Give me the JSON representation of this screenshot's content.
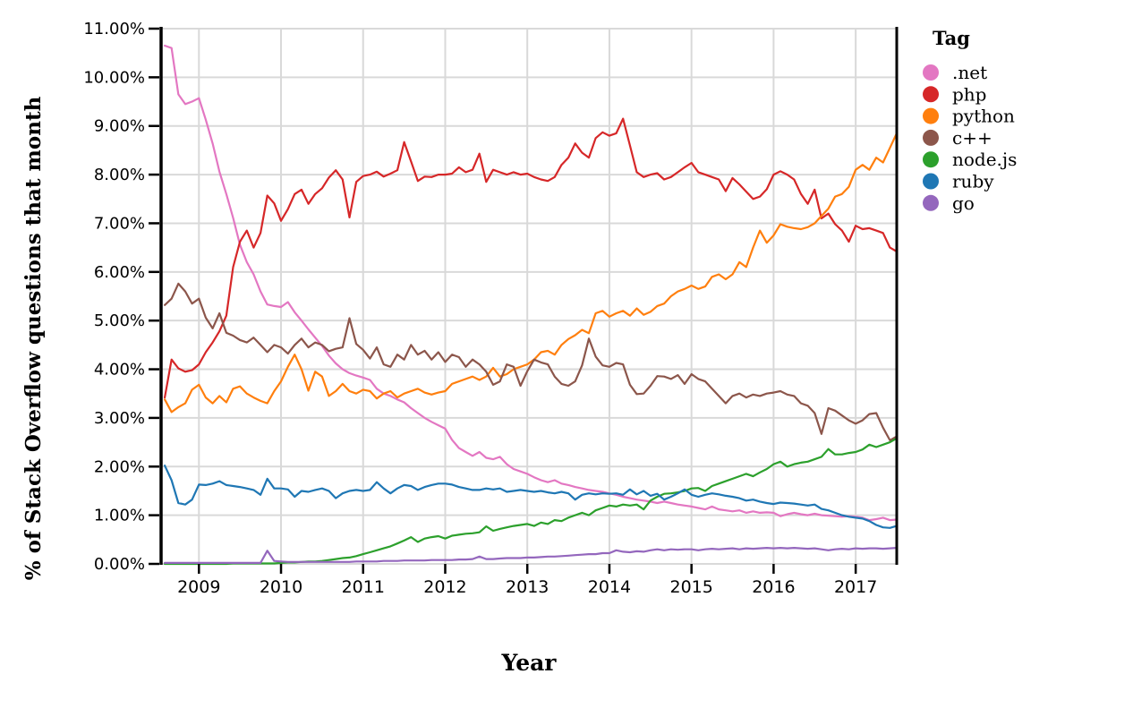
{
  "chart_data": {
    "type": "line",
    "title": "",
    "xlabel": "Year",
    "ylabel": "% of Stack Overflow questions that month",
    "legend_title": "Tag",
    "legend_position": "right",
    "grid": true,
    "xlim": [
      2008.55,
      2017.5
    ],
    "ylim": [
      0,
      11
    ],
    "x_start": 2008.5833,
    "x_step": 0.0833333,
    "x_ticks": [
      2009,
      2010,
      2011,
      2012,
      2013,
      2014,
      2015,
      2016,
      2017
    ],
    "x_tick_labels": [
      "2009",
      "2010",
      "2011",
      "2012",
      "2013",
      "2014",
      "2015",
      "2016",
      "2017"
    ],
    "y_ticks": [
      0,
      1,
      2,
      3,
      4,
      5,
      6,
      7,
      8,
      9,
      10,
      11
    ],
    "y_tick_labels": [
      "0.00%",
      "1.00%",
      "2.00%",
      "3.00%",
      "4.00%",
      "5.00%",
      "6.00%",
      "7.00%",
      "8.00%",
      "9.00%",
      "10.00%",
      "11.00%"
    ],
    "grid_color": "#d9d9d9",
    "axis_color": "#000000",
    "series": [
      {
        "name": ".net",
        "color": "#e377c2",
        "values": [
          10.65,
          10.6,
          9.65,
          9.45,
          9.5,
          9.57,
          9.13,
          8.64,
          8.06,
          7.6,
          7.11,
          6.56,
          6.2,
          5.95,
          5.6,
          5.33,
          5.3,
          5.28,
          5.38,
          5.17,
          5.0,
          4.82,
          4.65,
          4.48,
          4.28,
          4.12,
          4.0,
          3.92,
          3.87,
          3.83,
          3.78,
          3.6,
          3.5,
          3.45,
          3.38,
          3.32,
          3.2,
          3.1,
          3.0,
          2.92,
          2.85,
          2.78,
          2.55,
          2.38,
          2.3,
          2.22,
          2.3,
          2.18,
          2.15,
          2.2,
          2.05,
          1.95,
          1.9,
          1.85,
          1.78,
          1.72,
          1.68,
          1.72,
          1.65,
          1.62,
          1.58,
          1.55,
          1.52,
          1.5,
          1.48,
          1.45,
          1.42,
          1.38,
          1.35,
          1.32,
          1.3,
          1.28,
          1.25,
          1.28,
          1.25,
          1.22,
          1.2,
          1.18,
          1.15,
          1.12,
          1.18,
          1.12,
          1.1,
          1.08,
          1.1,
          1.05,
          1.08,
          1.05,
          1.06,
          1.05,
          0.98,
          1.02,
          1.05,
          1.02,
          1.0,
          1.03,
          1.0,
          0.99,
          0.98,
          0.97,
          0.98,
          0.97,
          0.95,
          0.9,
          0.92,
          0.95,
          0.9,
          0.91
        ]
      },
      {
        "name": "php",
        "color": "#d62728",
        "values": [
          3.42,
          4.2,
          4.02,
          3.95,
          3.98,
          4.1,
          4.35,
          4.55,
          4.78,
          5.1,
          6.1,
          6.62,
          6.85,
          6.5,
          6.8,
          7.57,
          7.41,
          7.05,
          7.29,
          7.6,
          7.69,
          7.4,
          7.6,
          7.72,
          7.94,
          8.09,
          7.9,
          7.12,
          7.85,
          7.97,
          8.0,
          8.06,
          7.96,
          8.02,
          8.09,
          8.67,
          8.27,
          7.87,
          7.96,
          7.95,
          8.0,
          8.0,
          8.02,
          8.15,
          8.05,
          8.1,
          8.43,
          7.85,
          8.1,
          8.05,
          8.0,
          8.05,
          8.0,
          8.02,
          7.95,
          7.9,
          7.87,
          7.95,
          8.2,
          8.35,
          8.64,
          8.45,
          8.35,
          8.75,
          8.87,
          8.8,
          8.85,
          9.15,
          8.6,
          8.05,
          7.95,
          8.0,
          8.03,
          7.9,
          7.95,
          8.05,
          8.15,
          8.24,
          8.05,
          8.0,
          7.95,
          7.9,
          7.66,
          7.93,
          7.8,
          7.65,
          7.5,
          7.55,
          7.7,
          8.0,
          8.07,
          8.0,
          7.9,
          7.6,
          7.4,
          7.69,
          7.1,
          7.2,
          6.98,
          6.85,
          6.62,
          6.95,
          6.88,
          6.9,
          6.85,
          6.8,
          6.5,
          6.42
        ]
      },
      {
        "name": "python",
        "color": "#ff7f0e",
        "values": [
          3.38,
          3.12,
          3.22,
          3.3,
          3.58,
          3.68,
          3.42,
          3.3,
          3.45,
          3.32,
          3.6,
          3.65,
          3.5,
          3.42,
          3.35,
          3.3,
          3.55,
          3.75,
          4.05,
          4.3,
          4.0,
          3.56,
          3.95,
          3.85,
          3.45,
          3.55,
          3.7,
          3.55,
          3.5,
          3.58,
          3.55,
          3.4,
          3.5,
          3.55,
          3.42,
          3.5,
          3.55,
          3.6,
          3.52,
          3.48,
          3.52,
          3.55,
          3.7,
          3.75,
          3.8,
          3.85,
          3.78,
          3.85,
          4.03,
          3.85,
          3.9,
          4.0,
          4.05,
          4.1,
          4.2,
          4.35,
          4.38,
          4.3,
          4.5,
          4.62,
          4.7,
          4.81,
          4.74,
          5.15,
          5.2,
          5.08,
          5.15,
          5.2,
          5.1,
          5.25,
          5.12,
          5.18,
          5.3,
          5.35,
          5.5,
          5.6,
          5.65,
          5.72,
          5.65,
          5.7,
          5.9,
          5.95,
          5.85,
          5.95,
          6.2,
          6.1,
          6.5,
          6.85,
          6.6,
          6.75,
          6.98,
          6.93,
          6.9,
          6.88,
          6.92,
          7.0,
          7.15,
          7.3,
          7.55,
          7.6,
          7.75,
          8.1,
          8.2,
          8.1,
          8.35,
          8.25,
          8.55,
          8.85
        ]
      },
      {
        "name": "c++",
        "color": "#8c564b",
        "values": [
          5.32,
          5.45,
          5.76,
          5.6,
          5.35,
          5.45,
          5.06,
          4.84,
          5.15,
          4.75,
          4.69,
          4.6,
          4.55,
          4.65,
          4.5,
          4.35,
          4.5,
          4.45,
          4.32,
          4.5,
          4.63,
          4.45,
          4.55,
          4.5,
          4.37,
          4.42,
          4.45,
          5.05,
          4.52,
          4.4,
          4.22,
          4.45,
          4.1,
          4.05,
          4.3,
          4.2,
          4.5,
          4.3,
          4.38,
          4.2,
          4.35,
          4.15,
          4.3,
          4.25,
          4.05,
          4.2,
          4.1,
          3.95,
          3.68,
          3.75,
          4.1,
          4.05,
          3.66,
          3.96,
          4.2,
          4.14,
          4.1,
          3.85,
          3.7,
          3.66,
          3.75,
          4.08,
          4.63,
          4.26,
          4.08,
          4.05,
          4.13,
          4.1,
          3.68,
          3.49,
          3.5,
          3.66,
          3.86,
          3.85,
          3.8,
          3.88,
          3.7,
          3.9,
          3.8,
          3.75,
          3.6,
          3.45,
          3.3,
          3.45,
          3.5,
          3.42,
          3.48,
          3.45,
          3.5,
          3.52,
          3.55,
          3.48,
          3.45,
          3.3,
          3.25,
          3.1,
          2.67,
          3.2,
          3.15,
          3.05,
          2.95,
          2.88,
          2.95,
          3.08,
          3.1,
          2.8,
          2.54,
          2.62
        ]
      },
      {
        "name": "node.js",
        "color": "#2ca02c",
        "values": [
          0.0,
          0.0,
          0.0,
          0.0,
          0.0,
          0.0,
          0.0,
          0.0,
          0.0,
          0.0,
          0.01,
          0.01,
          0.01,
          0.01,
          0.01,
          0.01,
          0.01,
          0.02,
          0.03,
          0.03,
          0.04,
          0.05,
          0.05,
          0.06,
          0.08,
          0.1,
          0.12,
          0.13,
          0.16,
          0.2,
          0.24,
          0.28,
          0.32,
          0.36,
          0.42,
          0.48,
          0.55,
          0.45,
          0.52,
          0.55,
          0.57,
          0.52,
          0.58,
          0.6,
          0.62,
          0.63,
          0.65,
          0.77,
          0.68,
          0.72,
          0.75,
          0.78,
          0.8,
          0.82,
          0.78,
          0.85,
          0.82,
          0.9,
          0.88,
          0.95,
          1.0,
          1.05,
          1.0,
          1.1,
          1.15,
          1.2,
          1.18,
          1.22,
          1.2,
          1.22,
          1.12,
          1.3,
          1.38,
          1.44,
          1.45,
          1.47,
          1.5,
          1.55,
          1.56,
          1.5,
          1.6,
          1.65,
          1.7,
          1.75,
          1.8,
          1.85,
          1.8,
          1.88,
          1.95,
          2.05,
          2.1,
          2.0,
          2.05,
          2.08,
          2.1,
          2.15,
          2.2,
          2.36,
          2.25,
          2.25,
          2.28,
          2.3,
          2.35,
          2.45,
          2.4,
          2.45,
          2.5,
          2.58
        ]
      },
      {
        "name": "ruby",
        "color": "#1f77b4",
        "values": [
          2.02,
          1.72,
          1.25,
          1.22,
          1.32,
          1.63,
          1.62,
          1.65,
          1.7,
          1.62,
          1.6,
          1.58,
          1.55,
          1.52,
          1.42,
          1.75,
          1.55,
          1.55,
          1.53,
          1.38,
          1.5,
          1.48,
          1.52,
          1.55,
          1.5,
          1.35,
          1.45,
          1.5,
          1.52,
          1.5,
          1.52,
          1.68,
          1.55,
          1.45,
          1.55,
          1.62,
          1.6,
          1.52,
          1.58,
          1.62,
          1.65,
          1.65,
          1.63,
          1.58,
          1.55,
          1.52,
          1.52,
          1.55,
          1.53,
          1.55,
          1.48,
          1.5,
          1.52,
          1.5,
          1.48,
          1.5,
          1.47,
          1.45,
          1.48,
          1.45,
          1.32,
          1.42,
          1.45,
          1.43,
          1.45,
          1.44,
          1.45,
          1.42,
          1.53,
          1.43,
          1.5,
          1.4,
          1.44,
          1.32,
          1.38,
          1.45,
          1.53,
          1.42,
          1.38,
          1.42,
          1.45,
          1.43,
          1.4,
          1.38,
          1.35,
          1.3,
          1.32,
          1.28,
          1.25,
          1.23,
          1.26,
          1.25,
          1.24,
          1.22,
          1.2,
          1.22,
          1.13,
          1.1,
          1.05,
          1.0,
          0.97,
          0.95,
          0.93,
          0.88,
          0.8,
          0.75,
          0.74,
          0.78
        ]
      },
      {
        "name": "go",
        "color": "#9467bd",
        "values": [
          0.02,
          0.02,
          0.02,
          0.02,
          0.02,
          0.02,
          0.02,
          0.02,
          0.02,
          0.02,
          0.02,
          0.02,
          0.02,
          0.02,
          0.02,
          0.27,
          0.06,
          0.05,
          0.04,
          0.04,
          0.04,
          0.04,
          0.04,
          0.04,
          0.04,
          0.04,
          0.04,
          0.04,
          0.05,
          0.05,
          0.05,
          0.05,
          0.06,
          0.06,
          0.06,
          0.07,
          0.07,
          0.07,
          0.07,
          0.08,
          0.08,
          0.08,
          0.08,
          0.09,
          0.09,
          0.1,
          0.15,
          0.1,
          0.1,
          0.11,
          0.12,
          0.12,
          0.12,
          0.13,
          0.13,
          0.14,
          0.15,
          0.15,
          0.16,
          0.17,
          0.18,
          0.19,
          0.2,
          0.2,
          0.22,
          0.22,
          0.28,
          0.25,
          0.24,
          0.26,
          0.25,
          0.28,
          0.3,
          0.28,
          0.3,
          0.29,
          0.3,
          0.3,
          0.28,
          0.3,
          0.31,
          0.3,
          0.31,
          0.32,
          0.3,
          0.32,
          0.31,
          0.32,
          0.33,
          0.32,
          0.33,
          0.32,
          0.33,
          0.32,
          0.31,
          0.32,
          0.3,
          0.28,
          0.3,
          0.31,
          0.3,
          0.32,
          0.31,
          0.32,
          0.32,
          0.31,
          0.32,
          0.33
        ]
      }
    ]
  }
}
